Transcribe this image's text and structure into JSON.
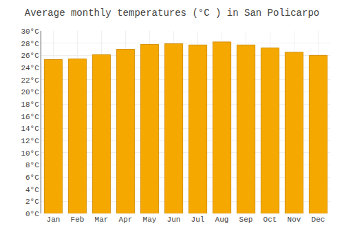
{
  "chart_data": {
    "type": "bar",
    "title": "Average monthly temperatures (°C ) in San Policarpo",
    "categories": [
      "Jan",
      "Feb",
      "Mar",
      "Apr",
      "May",
      "Jun",
      "Jul",
      "Aug",
      "Sep",
      "Oct",
      "Nov",
      "Dec"
    ],
    "values": [
      25.3,
      25.4,
      26.1,
      27.0,
      27.8,
      27.9,
      27.7,
      28.2,
      27.7,
      27.2,
      26.5,
      26.0
    ],
    "color": "#F5A800",
    "ylim": [
      0,
      30
    ],
    "yticks": [
      {
        "value": 0,
        "label": "0°C"
      },
      {
        "value": 2,
        "label": "2°C"
      },
      {
        "value": 4,
        "label": "4°C"
      },
      {
        "value": 6,
        "label": "6°C"
      },
      {
        "value": 8,
        "label": "8°C"
      },
      {
        "value": 10,
        "label": "10°C"
      },
      {
        "value": 12,
        "label": "12°C"
      },
      {
        "value": 14,
        "label": "14°C"
      },
      {
        "value": 16,
        "label": "16°C"
      },
      {
        "value": 18,
        "label": "18°C"
      },
      {
        "value": 20,
        "label": "20°C"
      },
      {
        "value": 22,
        "label": "22°C"
      },
      {
        "value": 24,
        "label": "24°C"
      },
      {
        "value": 26,
        "label": "26°C"
      },
      {
        "value": 28,
        "label": "28°C"
      },
      {
        "value": 30,
        "label": "30°C"
      }
    ],
    "grid": true
  }
}
